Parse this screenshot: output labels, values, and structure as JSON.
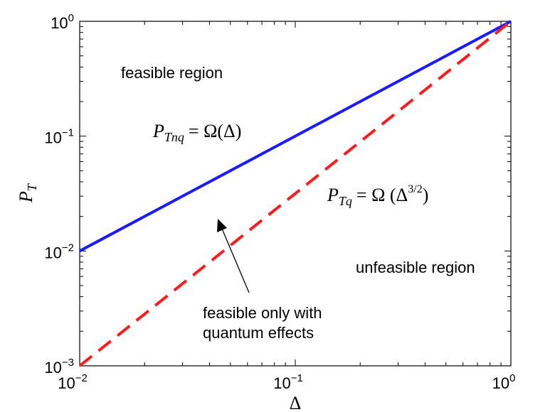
{
  "chart_data": {
    "type": "line",
    "xscale": "log",
    "yscale": "log",
    "xlim": [
      0.01,
      1
    ],
    "ylim": [
      0.001,
      1
    ],
    "xlabel": "Δ",
    "ylabel": {
      "main": "P",
      "sub": "T"
    },
    "x_ticks": [
      {
        "value": 0.01,
        "base": "10",
        "exp": "−2"
      },
      {
        "value": 0.1,
        "base": "10",
        "exp": "−1"
      },
      {
        "value": 1,
        "base": "10",
        "exp": "0"
      }
    ],
    "y_ticks": [
      {
        "value": 0.001,
        "base": "10",
        "exp": "−3"
      },
      {
        "value": 0.01,
        "base": "10",
        "exp": "−2"
      },
      {
        "value": 0.1,
        "base": "10",
        "exp": "−1"
      },
      {
        "value": 1,
        "base": "10",
        "exp": "0"
      }
    ],
    "grid": false,
    "series": [
      {
        "x": [
          0.01,
          1
        ],
        "y": [
          0.01,
          1
        ],
        "color": "#1a1aff",
        "style": "solid"
      },
      {
        "x": [
          0.01,
          1
        ],
        "y": [
          0.001,
          1
        ],
        "color": "#ff1a1a",
        "style": "dashed"
      }
    ],
    "annotations": {
      "feasible": "feasible region",
      "unfeasible": "unfeasible region",
      "quantum_line1": "feasible only with",
      "quantum_line2": "quantum effects"
    },
    "formulas": {
      "tnq": {
        "P": "P",
        "sub": "Tnq",
        "rhs": "= Ω(Δ)"
      },
      "tq": {
        "P": "P",
        "sub": "Tq",
        "rhs_a": "= Ω (Δ",
        "exp": "3/2",
        "rhs_b": ")"
      }
    }
  }
}
